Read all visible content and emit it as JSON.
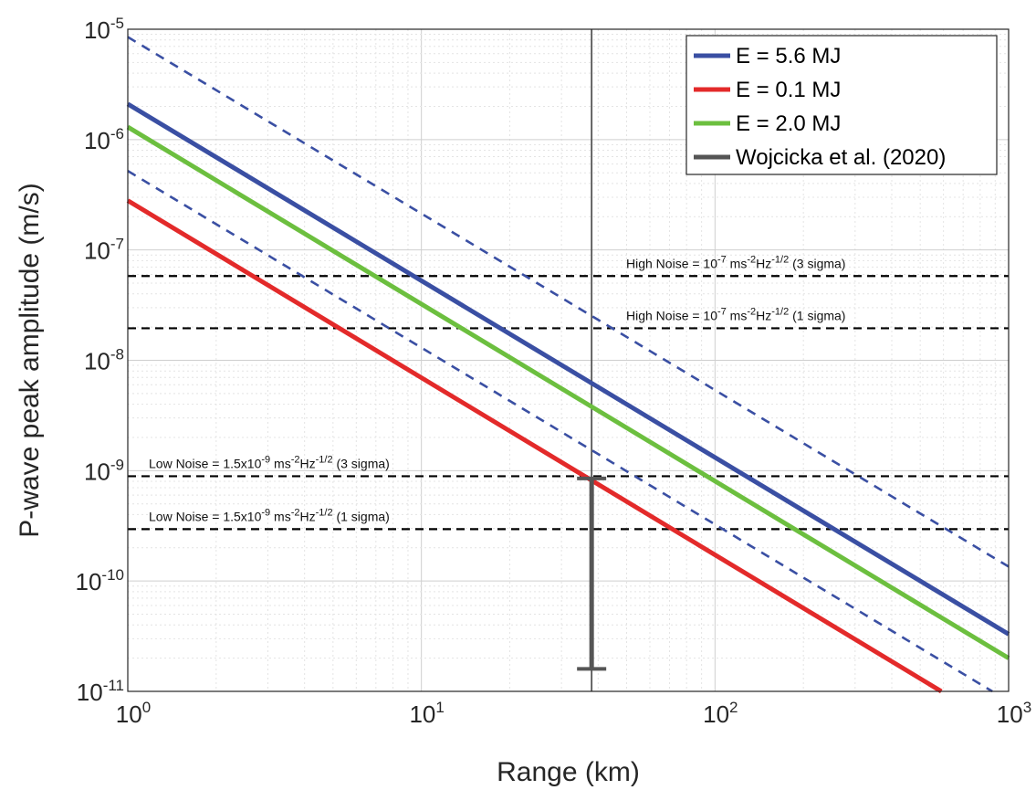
{
  "chart_data": {
    "type": "line",
    "xlabel": "Range (km)",
    "ylabel": "P-wave peak amplitude (m/s)",
    "xscale": "log",
    "yscale": "log",
    "xlim": [
      1,
      1000
    ],
    "ylim": [
      1e-11,
      1e-05
    ],
    "grid": "on (major and minor)",
    "x_ticks": [
      {
        "base": "10",
        "exp": "0"
      },
      {
        "base": "10",
        "exp": "1"
      },
      {
        "base": "10",
        "exp": "2"
      },
      {
        "base": "10",
        "exp": "3"
      }
    ],
    "y_ticks": [
      {
        "base": "10",
        "exp": "-11"
      },
      {
        "base": "10",
        "exp": "-10"
      },
      {
        "base": "10",
        "exp": "-9"
      },
      {
        "base": "10",
        "exp": "-8"
      },
      {
        "base": "10",
        "exp": "-7"
      },
      {
        "base": "10",
        "exp": "-6"
      },
      {
        "base": "10",
        "exp": "-5"
      }
    ],
    "legend_position": "top-right",
    "series": [
      {
        "name": "E = 5.6 MJ",
        "color": "#3a4fa3",
        "style": "solid",
        "x": [
          1,
          1000
        ],
        "y": [
          2.1e-06,
          3.3e-11
        ]
      },
      {
        "name": "E = 0.1 MJ",
        "color": "#e32a2a",
        "style": "solid",
        "x": [
          1,
          590
        ],
        "y": [
          2.8e-07,
          1e-11
        ]
      },
      {
        "name": "E = 2.0 MJ",
        "color": "#6cbf3f",
        "style": "solid",
        "x": [
          1,
          1000
        ],
        "y": [
          1.3e-06,
          2e-11
        ]
      },
      {
        "name": "",
        "color": "#3a4fa3",
        "style": "dashed",
        "x": [
          1,
          1000
        ],
        "y": [
          8.5e-06,
          1.35e-10
        ]
      },
      {
        "name": "",
        "color": "#3a4fa3",
        "style": "dashed",
        "x": [
          1,
          880
        ],
        "y": [
          5.2e-07,
          1e-11
        ]
      }
    ],
    "vertical_line": {
      "x": 38,
      "color": "#555555"
    },
    "error_bar": {
      "name": "Wojcicka et al. (2020)",
      "color": "#555555",
      "x": 38,
      "y_low": 1.6e-11,
      "y_high": 8.5e-10
    },
    "thresholds": [
      {
        "y": 5.8e-08,
        "label_pre": "High Noise = 10",
        "label_exp1": "-7",
        "label_mid": " ms",
        "label_exp2": "-2",
        "label_mid2": "Hz",
        "label_exp3": "-1/2",
        "label_post": " (3 sigma)"
      },
      {
        "y": 1.95e-08,
        "label_pre": "High Noise = 10",
        "label_exp1": "-7",
        "label_mid": " ms",
        "label_exp2": "-2",
        "label_mid2": "Hz",
        "label_exp3": "-1/2",
        "label_post": " (1 sigma)"
      },
      {
        "y": 8.9e-10,
        "label_pre": "Low Noise = 1.5x10",
        "label_exp1": "-9",
        "label_mid": " ms",
        "label_exp2": "-2",
        "label_mid2": "Hz",
        "label_exp3": "-1/2",
        "label_post": " (3 sigma)"
      },
      {
        "y": 2.95e-10,
        "label_pre": "Low Noise = 1.5x10",
        "label_exp1": "-9",
        "label_mid": " ms",
        "label_exp2": "-2",
        "label_mid2": "Hz",
        "label_exp3": "-1/2",
        "label_post": " (1 sigma)"
      }
    ],
    "legend": [
      {
        "label": "E = 5.6 MJ",
        "color": "#3a4fa3"
      },
      {
        "label": "E = 0.1 MJ",
        "color": "#e32a2a"
      },
      {
        "label": "E = 2.0 MJ",
        "color": "#6cbf3f"
      },
      {
        "label": "Wojcicka et al. (2020)",
        "color": "#555555"
      }
    ]
  }
}
